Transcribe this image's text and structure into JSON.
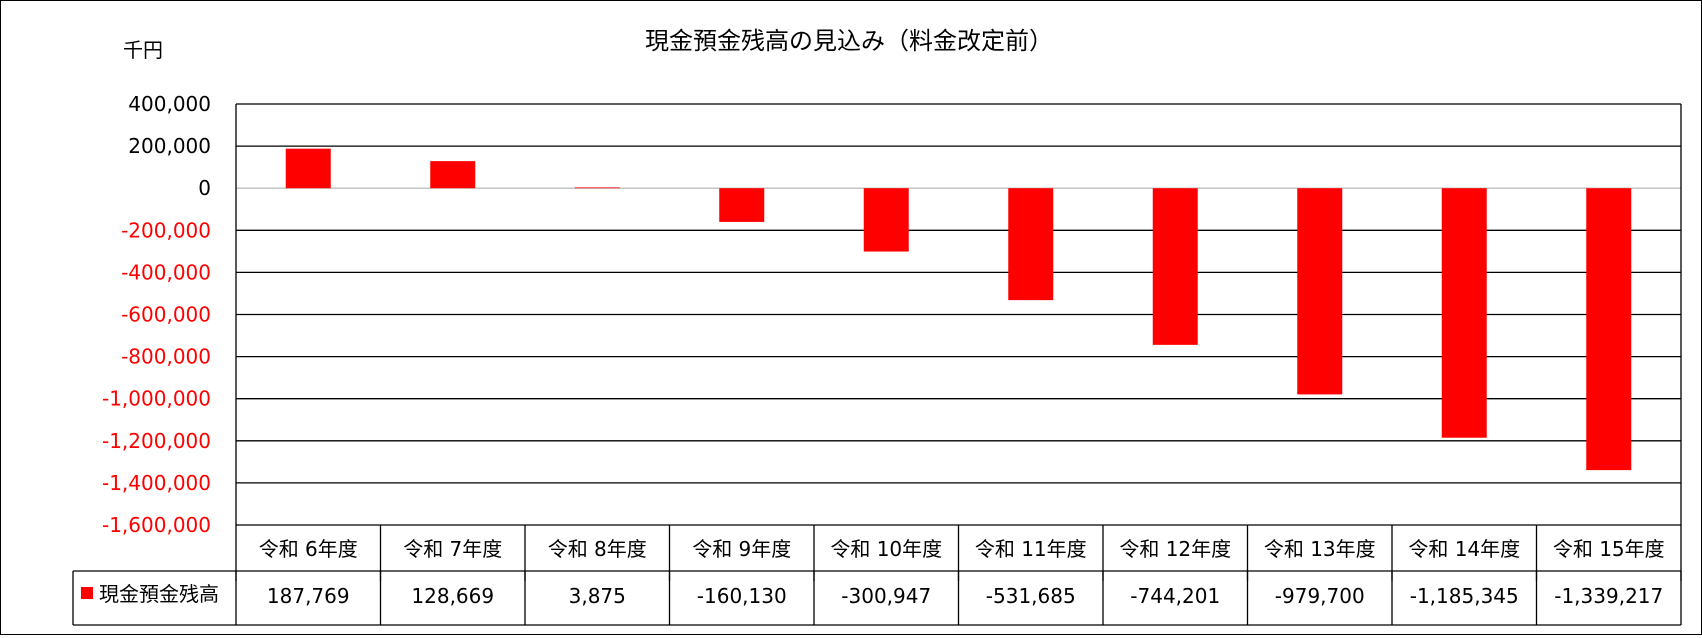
{
  "chart_data": {
    "type": "bar",
    "title": "現金預金残高の見込み（料金改定前）",
    "unit_label": "千円",
    "categories": [
      "令和 6年度",
      "令和 7年度",
      "令和 8年度",
      "令和 9年度",
      "令和 10年度",
      "令和 11年度",
      "令和 12年度",
      "令和 13年度",
      "令和 14年度",
      "令和 15年度"
    ],
    "series": [
      {
        "name": "現金預金残高",
        "color": "#ff0000",
        "values": [
          187769,
          128669,
          3875,
          -160130,
          -300947,
          -531685,
          -744201,
          -979700,
          -1185345,
          -1339217
        ],
        "value_labels": [
          "187,769",
          "128,669",
          "3,875",
          "-160,130",
          "-300,947",
          "-531,685",
          "-744,201",
          "-979,700",
          "-1,185,345",
          "-1,339,217"
        ]
      }
    ],
    "ylim": [
      -1600000,
      400000
    ],
    "ytick_values": [
      400000,
      200000,
      0,
      -200000,
      -400000,
      -600000,
      -800000,
      -1000000,
      -1200000,
      -1400000,
      -1600000
    ],
    "ytick_labels": [
      "400,000",
      "200,000",
      "0",
      "-200,000",
      "-400,000",
      "-600,000",
      "-800,000",
      "-1,000,000",
      "-1,200,000",
      "-1,400,000",
      "-1,600,000"
    ],
    "positive_tick_color": "#000000",
    "negative_tick_color": "#ff0000",
    "grid": true,
    "zero_line_color": "#bfbfbf",
    "legend": "data-table-left"
  }
}
